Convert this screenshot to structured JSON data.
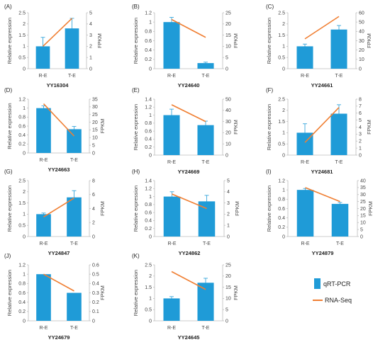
{
  "colors": {
    "bar": "#1f9bd7",
    "line": "#f07f33",
    "error": "#1f9bd7"
  },
  "legend": {
    "bar_label": "qRT-PCR",
    "line_label": "RNA-Seq",
    "placement": "bottom-right"
  },
  "chart_data": [
    {
      "type": "bar",
      "panel": "(A)",
      "gene": "YY16304",
      "categories": [
        "R-E",
        "T-E"
      ],
      "series": [
        {
          "name": "qRT-PCR",
          "values": [
            1.0,
            1.8
          ],
          "errors": [
            0.4,
            0.45
          ]
        },
        {
          "name": "RNA-Seq",
          "values": [
            2.0,
            4.5
          ]
        }
      ],
      "ylabel": "Relative expression",
      "y2label": "FPKM",
      "yticks": [
        "0",
        "0.5",
        "1",
        "1.5",
        "2",
        "2.5"
      ],
      "ylim": [
        0,
        2.5
      ],
      "y2ticks": [
        "0",
        "1",
        "2",
        "3",
        "4",
        "5"
      ],
      "y2lim": [
        0,
        5
      ]
    },
    {
      "type": "bar",
      "panel": "(B)",
      "gene": "YY24640",
      "categories": [
        "R-E",
        "T-E"
      ],
      "series": [
        {
          "name": "qRT-PCR",
          "values": [
            1.0,
            0.12
          ],
          "errors": [
            0.1,
            0.02
          ]
        },
        {
          "name": "RNA-Seq",
          "values": [
            22,
            14
          ]
        }
      ],
      "ylabel": "Relative expression",
      "y2label": "FPKM",
      "yticks": [
        "0",
        "0.2",
        "0.4",
        "0.6",
        "0.8",
        "1",
        "1.2"
      ],
      "ylim": [
        0,
        1.2
      ],
      "y2ticks": [
        "0",
        "5",
        "10",
        "15",
        "20",
        "25"
      ],
      "y2lim": [
        0,
        25
      ]
    },
    {
      "type": "bar",
      "panel": "(C)",
      "gene": "YY24661",
      "categories": [
        "R-E",
        "T-E"
      ],
      "series": [
        {
          "name": "qRT-PCR",
          "values": [
            1.0,
            1.75
          ],
          "errors": [
            0.1,
            0.18
          ]
        },
        {
          "name": "RNA-Seq",
          "values": [
            32,
            56
          ]
        }
      ],
      "ylabel": "Relative expression",
      "y2label": "FPKM",
      "yticks": [
        "0",
        "0.5",
        "1",
        "1.5",
        "2",
        "2.5"
      ],
      "ylim": [
        0,
        2.5
      ],
      "y2ticks": [
        "0",
        "10",
        "20",
        "30",
        "40",
        "50",
        "60"
      ],
      "y2lim": [
        0,
        60
      ]
    },
    {
      "type": "bar",
      "panel": "(D)",
      "gene": "YY24663",
      "categories": [
        "R-E",
        "T-E"
      ],
      "series": [
        {
          "name": "qRT-PCR",
          "values": [
            1.0,
            0.53
          ],
          "errors": [
            0.05,
            0.06
          ]
        },
        {
          "name": "RNA-Seq",
          "values": [
            32,
            11
          ]
        }
      ],
      "ylabel": "Relative expression",
      "y2label": "FPKM",
      "yticks": [
        "0",
        "0.2",
        "0.4",
        "0.6",
        "0.8",
        "1",
        "1.2"
      ],
      "ylim": [
        0,
        1.2
      ],
      "y2ticks": [
        "0",
        "5",
        "10",
        "15",
        "20",
        "25",
        "30",
        "35"
      ],
      "y2lim": [
        0,
        35
      ]
    },
    {
      "type": "bar",
      "panel": "(E)",
      "gene": "YY24669",
      "categories": [
        "R-E",
        "T-E"
      ],
      "series": [
        {
          "name": "qRT-PCR",
          "values": [
            1.0,
            0.75
          ],
          "errors": [
            0.15,
            0.1
          ]
        },
        {
          "name": "RNA-Seq",
          "values": [
            45,
            30
          ]
        }
      ],
      "ylabel": "Relative expression",
      "y2label": "FPKM",
      "yticks": [
        "0",
        "0.2",
        "0.4",
        "0.6",
        "0.8",
        "1",
        "1.2",
        "1.4"
      ],
      "ylim": [
        0,
        1.4
      ],
      "y2ticks": [
        "0",
        "10",
        "20",
        "30",
        "40",
        "50"
      ],
      "y2lim": [
        0,
        50
      ]
    },
    {
      "type": "bar",
      "panel": "(F)",
      "gene": "YY24681",
      "categories": [
        "R-E",
        "T-E"
      ],
      "series": [
        {
          "name": "qRT-PCR",
          "values": [
            1.0,
            1.85
          ],
          "errors": [
            0.4,
            0.4
          ]
        },
        {
          "name": "RNA-Seq",
          "values": [
            1.8,
            6.8
          ]
        }
      ],
      "ylabel": "Relative expression",
      "y2label": "FPKM",
      "yticks": [
        "0",
        "0.5",
        "1",
        "1.5",
        "2",
        "2.5"
      ],
      "ylim": [
        0,
        2.5
      ],
      "y2ticks": [
        "0",
        "1",
        "2",
        "3",
        "4",
        "5",
        "6",
        "7",
        "8"
      ],
      "y2lim": [
        0,
        8
      ]
    },
    {
      "type": "bar",
      "panel": "(G)",
      "gene": "YY24847",
      "categories": [
        "R-E",
        "T-E"
      ],
      "series": [
        {
          "name": "qRT-PCR",
          "values": [
            1.0,
            1.75
          ],
          "errors": [
            0.05,
            0.3
          ]
        },
        {
          "name": "RNA-Seq",
          "values": [
            2.8,
            5.5
          ]
        }
      ],
      "ylabel": "Relative expression",
      "y2label": "FPKM",
      "yticks": [
        "0",
        "0.5",
        "1",
        "1.5",
        "2",
        "2.5"
      ],
      "ylim": [
        0,
        2.5
      ],
      "y2ticks": [
        "0",
        "2",
        "4",
        "6",
        "8"
      ],
      "y2lim": [
        0,
        8
      ]
    },
    {
      "type": "bar",
      "panel": "(H)",
      "gene": "YY24862",
      "categories": [
        "R-E",
        "T-E"
      ],
      "series": [
        {
          "name": "qRT-PCR",
          "values": [
            1.0,
            0.88
          ],
          "errors": [
            0.12,
            0.15
          ]
        },
        {
          "name": "RNA-Seq",
          "values": [
            3.8,
            2.5
          ]
        }
      ],
      "ylabel": "Relative expression",
      "y2label": "FPKM",
      "yticks": [
        "0",
        "0.2",
        "0.4",
        "0.6",
        "0.8",
        "1",
        "1.2",
        "1.4"
      ],
      "ylim": [
        0,
        1.4
      ],
      "y2ticks": [
        "0",
        "1",
        "2",
        "3",
        "4",
        "5"
      ],
      "y2lim": [
        0,
        5
      ]
    },
    {
      "type": "bar",
      "panel": "(I)",
      "gene": "YY24879",
      "categories": [
        "R-E",
        "T-E"
      ],
      "series": [
        {
          "name": "qRT-PCR",
          "values": [
            1.0,
            0.7
          ],
          "errors": [
            0.03,
            0.03
          ]
        },
        {
          "name": "RNA-Seq",
          "values": [
            35,
            25
          ]
        }
      ],
      "ylabel": "Relative expression",
      "y2label": "FPKM",
      "yticks": [
        "0",
        "0.2",
        "0.4",
        "0.6",
        "0.8",
        "1",
        "1.2"
      ],
      "ylim": [
        0,
        1.2
      ],
      "y2ticks": [
        "0",
        "5",
        "10",
        "15",
        "20",
        "25",
        "30",
        "35",
        "40"
      ],
      "y2lim": [
        0,
        40
      ]
    },
    {
      "type": "bar",
      "panel": "(J)",
      "gene": "YY24679",
      "categories": [
        "R-E",
        "T-E"
      ],
      "series": [
        {
          "name": "qRT-PCR",
          "values": [
            1.0,
            0.6
          ],
          "errors": [
            0.0,
            0.0
          ]
        },
        {
          "name": "RNA-Seq",
          "values": [
            0.5,
            0.32
          ]
        }
      ],
      "ylabel": "Relative expression",
      "y2label": "FPKM",
      "yticks": [
        "0",
        "0.2",
        "0.4",
        "0.6",
        "0.8",
        "1",
        "1.2"
      ],
      "ylim": [
        0,
        1.2
      ],
      "y2ticks": [
        "0",
        "0.1",
        "0.2",
        "0.3",
        "0.4",
        "0.5",
        "0.6"
      ],
      "y2lim": [
        0,
        0.6
      ]
    },
    {
      "type": "bar",
      "panel": "(K)",
      "gene": "YY24645",
      "categories": [
        "R-E",
        "T-E"
      ],
      "series": [
        {
          "name": "qRT-PCR",
          "values": [
            1.0,
            1.7
          ],
          "errors": [
            0.08,
            0.2
          ]
        },
        {
          "name": "RNA-Seq",
          "values": [
            22,
            14
          ]
        }
      ],
      "ylabel": "Relative expression",
      "y2label": "FPKM",
      "yticks": [
        "0",
        "0.5",
        "1",
        "1.5",
        "2",
        "2.5"
      ],
      "ylim": [
        0,
        2.5
      ],
      "y2ticks": [
        "0",
        "5",
        "10",
        "15",
        "20",
        "25"
      ],
      "y2lim": [
        0,
        25
      ]
    }
  ]
}
